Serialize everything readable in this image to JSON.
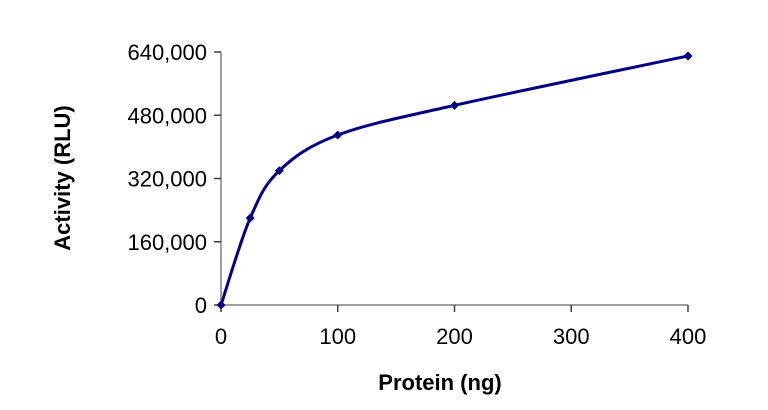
{
  "chart_data": {
    "type": "line",
    "title": "",
    "xlabel": "Protein (ng)",
    "ylabel": "Activity (RLU)",
    "x": [
      0,
      25,
      50,
      100,
      200,
      400
    ],
    "series": [
      {
        "name": "Activity",
        "values": [
          0,
          220000,
          340000,
          430000,
          505000,
          630000
        ],
        "color": "#000080",
        "marker": "diamond",
        "smoothed": true
      }
    ],
    "xlim": [
      0,
      400
    ],
    "ylim": [
      0,
      640000
    ],
    "xticks": [
      0,
      100,
      200,
      300,
      400
    ],
    "xtick_labels": [
      "0",
      "100",
      "200",
      "300",
      "400"
    ],
    "yticks": [
      0,
      160000,
      320000,
      480000,
      640000
    ],
    "ytick_labels": [
      "0",
      "160,000",
      "320,000",
      "480,000",
      "640,000"
    ],
    "grid": false,
    "legend": null
  }
}
